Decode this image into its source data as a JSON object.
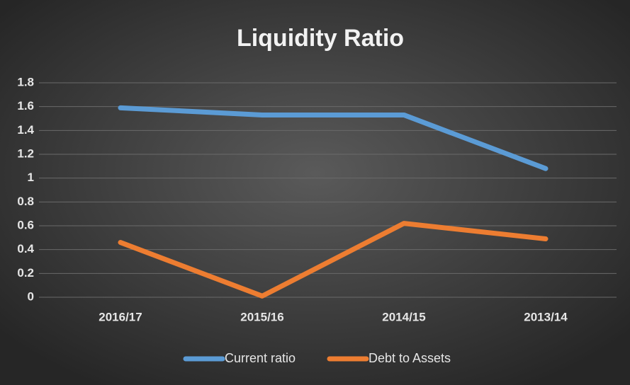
{
  "chart_data": {
    "type": "line",
    "title": "Liquidity Ratio",
    "categories": [
      "2016/17",
      "2015/16",
      "2014/15",
      "2013/14"
    ],
    "series": [
      {
        "name": "Current ratio",
        "color": "#5b9bd5",
        "values": [
          1.59,
          1.53,
          1.53,
          1.08
        ]
      },
      {
        "name": "Debt to Assets",
        "color": "#ed7d31",
        "values": [
          0.46,
          0.01,
          0.62,
          0.49
        ]
      }
    ],
    "ylim": [
      0,
      1.8
    ],
    "yticks": [
      0,
      0.2,
      0.4,
      0.6,
      0.8,
      1,
      1.2,
      1.4,
      1.6,
      1.8
    ],
    "grid": true,
    "legend": "bottom"
  }
}
